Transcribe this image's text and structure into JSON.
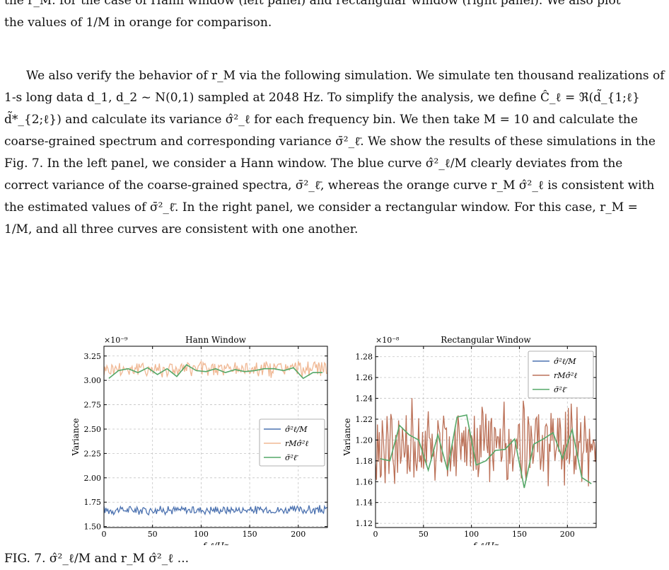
{
  "text": {
    "top_fragment": "the r_M. for the case of Hann window (left panel) and rectangular window (right panel). We also plot",
    "top_line2": "the values of 1/M in orange for comparison.",
    "main_paragraph": "We also verify the behavior of r_M via the following simulation. We simulate ten thousand realizations of 1-s long data d_1, d_2 ~ N(0,1) sampled at 2048 Hz. To simplify the analysis, we define Ĉ_ℓ = ℜ(d̃_{1;ℓ} d̃*_{2;ℓ}) and calculate its variance σ̂²_ℓ for each frequency bin. We then take M = 10 and calculate the coarse-grained spectrum and corresponding variance σ̄²_ℓ̄. We show the results of these simulations in the Fig. 7. In the left panel, we consider a Hann window. The blue curve σ̂²_ℓ/M clearly deviates from the correct variance of the coarse-grained spectra, σ̄²_ℓ̄, whereas the orange curve r_M σ̂²_ℓ is consistent with the estimated values of σ̄²_ℓ̄. In the right panel, we consider a rectangular window. For this case, r_M = 1/M, and all three curves are consistent with one another.",
    "fig_ref": "7",
    "caption_fragment": "FIG. 7. σ̂²_ℓ/M and r_M σ̂²_ℓ ..."
  },
  "colors": {
    "blue": "#4c72b0",
    "orange": "#dd8452",
    "green": "#55a868",
    "link": "#2040c0",
    "grid": "#b0b0b0"
  },
  "chart_data": [
    {
      "type": "line",
      "title": "Hann Window",
      "xlabel": "f_ℓ/Hz",
      "ylabel": "Variance",
      "scale_label": "×10⁻⁹",
      "xlim": [
        0,
        230
      ],
      "ylim": [
        1.49,
        3.35
      ],
      "xticks": [
        0,
        50,
        100,
        150,
        200
      ],
      "yticks": [
        1.5,
        1.75,
        2.0,
        2.25,
        2.5,
        2.75,
        3.0,
        3.25
      ],
      "ytick_labels": [
        "1.50",
        "1.75",
        "2.00",
        "2.25",
        "2.50",
        "2.75",
        "3.00",
        "3.25"
      ],
      "grid": true,
      "legend_position": "center-right",
      "series": [
        {
          "name": "σ̂²_ℓ/M",
          "legend": "σ̂²ℓ/M",
          "color": "#4c72b0",
          "kind": "noisy",
          "mean": 1.67,
          "amp": 0.045,
          "step": 1
        },
        {
          "name": "r_M σ̂²_ℓ",
          "legend": "rMσ̂²ℓ",
          "color": "#f0b894",
          "kind": "noisy",
          "mean": 3.12,
          "amp": 0.085,
          "step": 1
        },
        {
          "name": "σ̄²_ℓ̄",
          "legend": "σ̄²ℓ̄",
          "color": "#55a868",
          "kind": "points",
          "x": [
            5,
            15,
            25,
            35,
            45,
            55,
            65,
            75,
            85,
            95,
            105,
            115,
            125,
            135,
            145,
            155,
            165,
            175,
            185,
            195,
            205,
            215,
            225
          ],
          "y": [
            3.02,
            3.1,
            3.12,
            3.08,
            3.13,
            3.06,
            3.12,
            3.04,
            3.16,
            3.1,
            3.09,
            3.12,
            3.08,
            3.11,
            3.09,
            3.1,
            3.12,
            3.12,
            3.1,
            3.13,
            3.02,
            3.08,
            3.08
          ]
        }
      ]
    },
    {
      "type": "line",
      "title": "Rectangular Window",
      "xlabel": "f_ℓ/Hz",
      "ylabel": "Variance",
      "scale_label": "×10⁻⁸",
      "xlim": [
        0,
        230
      ],
      "ylim": [
        1.116,
        1.29
      ],
      "xticks": [
        0,
        50,
        100,
        150,
        200
      ],
      "yticks": [
        1.12,
        1.14,
        1.16,
        1.18,
        1.2,
        1.22,
        1.24,
        1.26,
        1.28
      ],
      "ytick_labels": [
        "1.12",
        "1.14",
        "1.16",
        "1.18",
        "1.20",
        "1.22",
        "1.24",
        "1.26",
        "1.28"
      ],
      "grid": true,
      "legend_position": "top-right",
      "series": [
        {
          "name": "σ̂²_ℓ/M",
          "legend": "σ̂²ℓ/M",
          "color": "#4c72b0",
          "kind": "hidden"
        },
        {
          "name": "r_M σ̂²_ℓ",
          "legend": "rMσ̂²ℓ",
          "color": "#bb7158",
          "kind": "noisy",
          "mean": 1.195,
          "amp": 0.038,
          "step": 1
        },
        {
          "name": "σ̄²_ℓ̄",
          "legend": "σ̄²ℓ̄",
          "color": "#55a868",
          "kind": "points",
          "x": [
            5,
            15,
            25,
            35,
            45,
            55,
            65,
            75,
            85,
            95,
            105,
            115,
            125,
            135,
            145,
            155,
            165,
            175,
            185,
            195,
            205,
            215,
            225
          ],
          "y": [
            1.182,
            1.18,
            1.214,
            1.205,
            1.2,
            1.171,
            1.205,
            1.171,
            1.222,
            1.224,
            1.176,
            1.18,
            1.19,
            1.191,
            1.201,
            1.154,
            1.196,
            1.201,
            1.207,
            1.182,
            1.21,
            1.164,
            1.158
          ]
        }
      ]
    }
  ]
}
